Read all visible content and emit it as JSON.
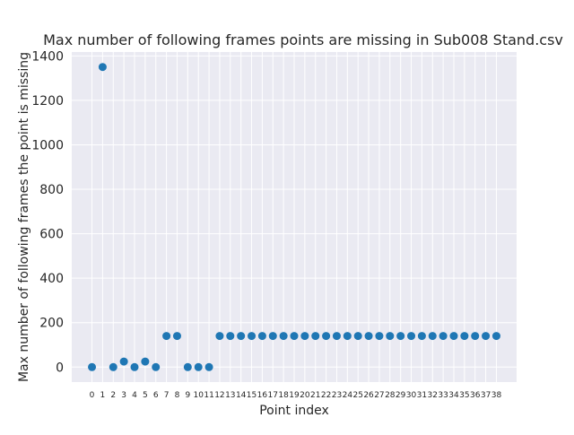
{
  "chart_data": {
    "type": "scatter",
    "title": "Max number of following frames points are missing in Sub008 Stand.csv",
    "xlabel": "Point index",
    "ylabel": "Max number of following frames the point is missing",
    "x": [
      0,
      1,
      2,
      3,
      4,
      5,
      6,
      7,
      8,
      9,
      10,
      11,
      12,
      13,
      14,
      15,
      16,
      17,
      18,
      19,
      20,
      21,
      22,
      23,
      24,
      25,
      26,
      27,
      28,
      29,
      30,
      31,
      32,
      33,
      34,
      35,
      36,
      37,
      38
    ],
    "x_tick_labels": [
      "0",
      "1",
      "2",
      "3",
      "4",
      "5",
      "6",
      "7",
      "8",
      "9",
      "10",
      "11",
      "12",
      "13",
      "14",
      "15",
      "16",
      "17",
      "18",
      "19",
      "20",
      "21",
      "22",
      "23",
      "24",
      "25",
      "26",
      "27",
      "28",
      "29",
      "30",
      "31",
      "32",
      "33",
      "34",
      "35",
      "36",
      "37",
      "38"
    ],
    "values": [
      0,
      1350,
      0,
      25,
      0,
      25,
      0,
      140,
      140,
      0,
      0,
      0,
      140,
      140,
      140,
      140,
      140,
      140,
      140,
      140,
      140,
      140,
      140,
      140,
      140,
      140,
      140,
      140,
      140,
      140,
      140,
      140,
      140,
      140,
      140,
      140,
      140,
      140,
      140
    ],
    "yticks": [
      0,
      200,
      400,
      600,
      800,
      1000,
      1200,
      1400
    ],
    "ylim": [
      -67.5,
      1417.5
    ],
    "xlim": [
      -1.9,
      39.9
    ],
    "grid": true,
    "legend": "none",
    "colors": {
      "marker": "#1f77b4",
      "plot_bg": "#eaeaf2",
      "grid": "#ffffff",
      "text": "#262626"
    }
  }
}
